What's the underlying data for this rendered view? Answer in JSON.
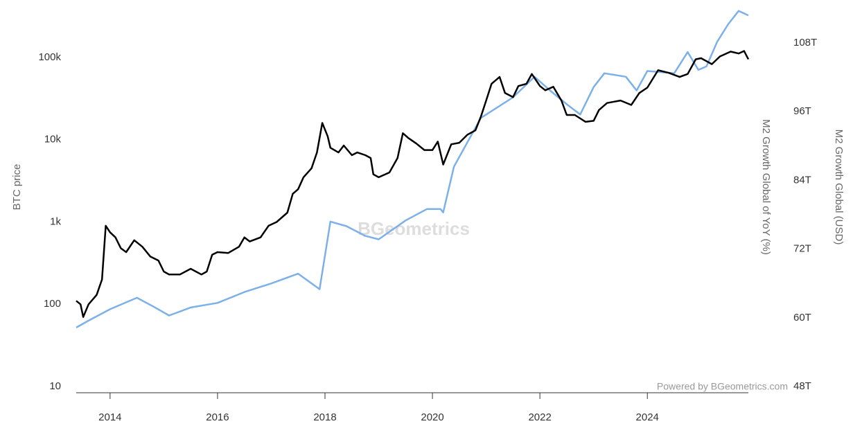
{
  "chart_data": {
    "type": "line",
    "ylabel": "BTC price",
    "y2label_1": "M2 Growth Global of YoY (%)",
    "y2label_2": "M2 Growth Global (USD)",
    "watermark": "BGeometrics",
    "credit": "Powered by BGeometrics.com",
    "log_y": true,
    "xlim": [
      2013.37,
      2025.88
    ],
    "xticks": [
      2014,
      2016,
      2018,
      2020,
      2022,
      2024
    ],
    "ylim": [
      10,
      500000
    ],
    "yticks": [
      10,
      100,
      {
        "value": 1000,
        "label": "1k"
      },
      {
        "value": 10000,
        "label": "10k"
      },
      {
        "value": 100000,
        "label": "100k"
      }
    ],
    "y2lim": [
      48,
      115.5
    ],
    "y2ticks": [
      {
        "value": 48,
        "label": "48T"
      },
      {
        "value": 60,
        "label": "60T"
      },
      {
        "value": 72,
        "label": "72T"
      },
      {
        "value": 84,
        "label": "84T"
      },
      {
        "value": 96,
        "label": "96T"
      },
      {
        "value": 108,
        "label": "108T"
      }
    ],
    "series": [
      {
        "color": "#7cb0e8",
        "axis": "y2",
        "x": [
          2013.37,
          2013.6,
          2014.0,
          2014.5,
          2014.8,
          2015.1,
          2015.5,
          2016.0,
          2016.5,
          2017.0,
          2017.5,
          2017.9,
          2018.1,
          2018.4,
          2018.75,
          2019.0,
          2019.5,
          2019.9,
          2020.15,
          2020.2,
          2020.4,
          2020.9,
          2021.5,
          2021.9,
          2022.2,
          2022.5,
          2022.75,
          2023.0,
          2023.2,
          2023.6,
          2023.8,
          2024.0,
          2024.5,
          2024.75,
          2024.95,
          2025.1,
          2025.3,
          2025.5,
          2025.7,
          2025.88
        ],
        "values": [
          58.3,
          59.5,
          61.5,
          63.5,
          62,
          60.4,
          61.8,
          62.6,
          64.5,
          66,
          67.7,
          65,
          76.8,
          76,
          74.3,
          73.7,
          77,
          79,
          79,
          78.4,
          86.4,
          94.9,
          98.5,
          102.1,
          99.6,
          97.3,
          95.5,
          100.3,
          102.7,
          102.1,
          99.7,
          103.1,
          102.7,
          106.4,
          103.3,
          103.9,
          108.2,
          111.2,
          113.6,
          112.8
        ]
      },
      {
        "color": "#000000",
        "axis": "y",
        "x": [
          2013.37,
          2013.45,
          2013.5,
          2013.6,
          2013.75,
          2013.85,
          2013.92,
          2014.0,
          2014.1,
          2014.2,
          2014.3,
          2014.45,
          2014.6,
          2014.75,
          2014.9,
          2015.0,
          2015.1,
          2015.3,
          2015.5,
          2015.7,
          2015.8,
          2015.9,
          2016.0,
          2016.2,
          2016.4,
          2016.5,
          2016.6,
          2016.8,
          2016.95,
          2017.1,
          2017.3,
          2017.4,
          2017.5,
          2017.6,
          2017.75,
          2017.85,
          2017.95,
          2018.05,
          2018.1,
          2018.25,
          2018.35,
          2018.5,
          2018.6,
          2018.75,
          2018.85,
          2018.9,
          2019.0,
          2019.2,
          2019.35,
          2019.45,
          2019.55,
          2019.7,
          2019.85,
          2020.0,
          2020.1,
          2020.2,
          2020.35,
          2020.5,
          2020.65,
          2020.8,
          2020.9,
          2021.0,
          2021.1,
          2021.25,
          2021.35,
          2021.5,
          2021.6,
          2021.75,
          2021.85,
          2022.0,
          2022.1,
          2022.25,
          2022.4,
          2022.5,
          2022.65,
          2022.85,
          2023.0,
          2023.1,
          2023.25,
          2023.5,
          2023.7,
          2023.85,
          2024.0,
          2024.2,
          2024.4,
          2024.6,
          2024.75,
          2024.9,
          2025.0,
          2025.2,
          2025.35,
          2025.55,
          2025.7,
          2025.8,
          2025.88
        ],
        "values": [
          110,
          100,
          70,
          100,
          130,
          200,
          900,
          750,
          650,
          480,
          430,
          600,
          500,
          380,
          340,
          250,
          230,
          230,
          270,
          230,
          250,
          400,
          430,
          420,
          500,
          650,
          580,
          650,
          900,
          1000,
          1300,
          2200,
          2500,
          3500,
          4500,
          7000,
          16000,
          11000,
          8000,
          7000,
          8500,
          6500,
          7000,
          6500,
          6000,
          3800,
          3500,
          4000,
          6000,
          12000,
          10500,
          9000,
          7500,
          7500,
          9500,
          5000,
          8800,
          9200,
          11500,
          13000,
          19000,
          30000,
          48000,
          58000,
          37000,
          33000,
          45000,
          48000,
          63000,
          45000,
          40000,
          44000,
          30000,
          20000,
          20000,
          16500,
          17000,
          23000,
          28000,
          30000,
          26500,
          37000,
          43000,
          70000,
          65000,
          58000,
          63000,
          95000,
          98000,
          83000,
          103000,
          118000,
          112000,
          120000,
          95000
        ]
      }
    ]
  }
}
